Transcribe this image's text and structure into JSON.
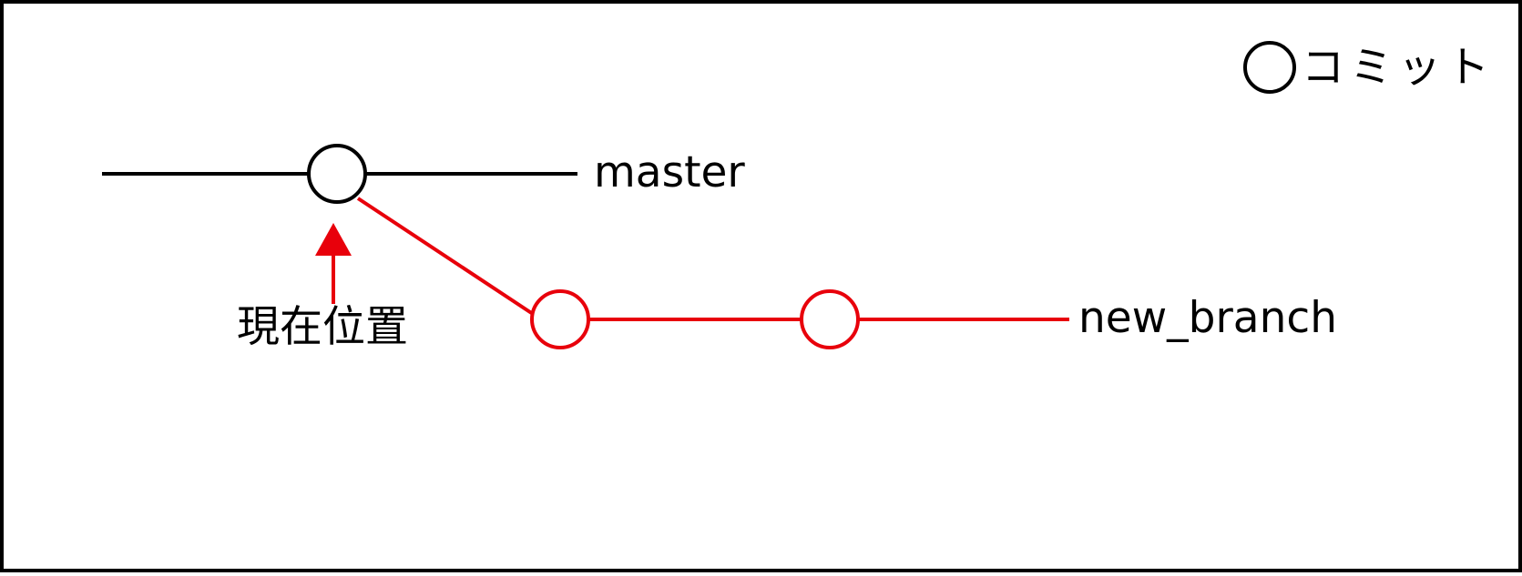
{
  "colors": {
    "master": "#000000",
    "branch": "#e8000b",
    "head_pointer": "#e8000b",
    "frame": "#000000",
    "background": "#ffffff"
  },
  "legend": {
    "icon": "commit-circle-icon",
    "label": "コミット"
  },
  "branches": {
    "master": {
      "label": "master",
      "commit_count": 1
    },
    "new_branch": {
      "label": "new_branch",
      "commit_count": 2,
      "forks_from": "master"
    }
  },
  "head": {
    "label": "現在位置",
    "points_to": "master"
  }
}
